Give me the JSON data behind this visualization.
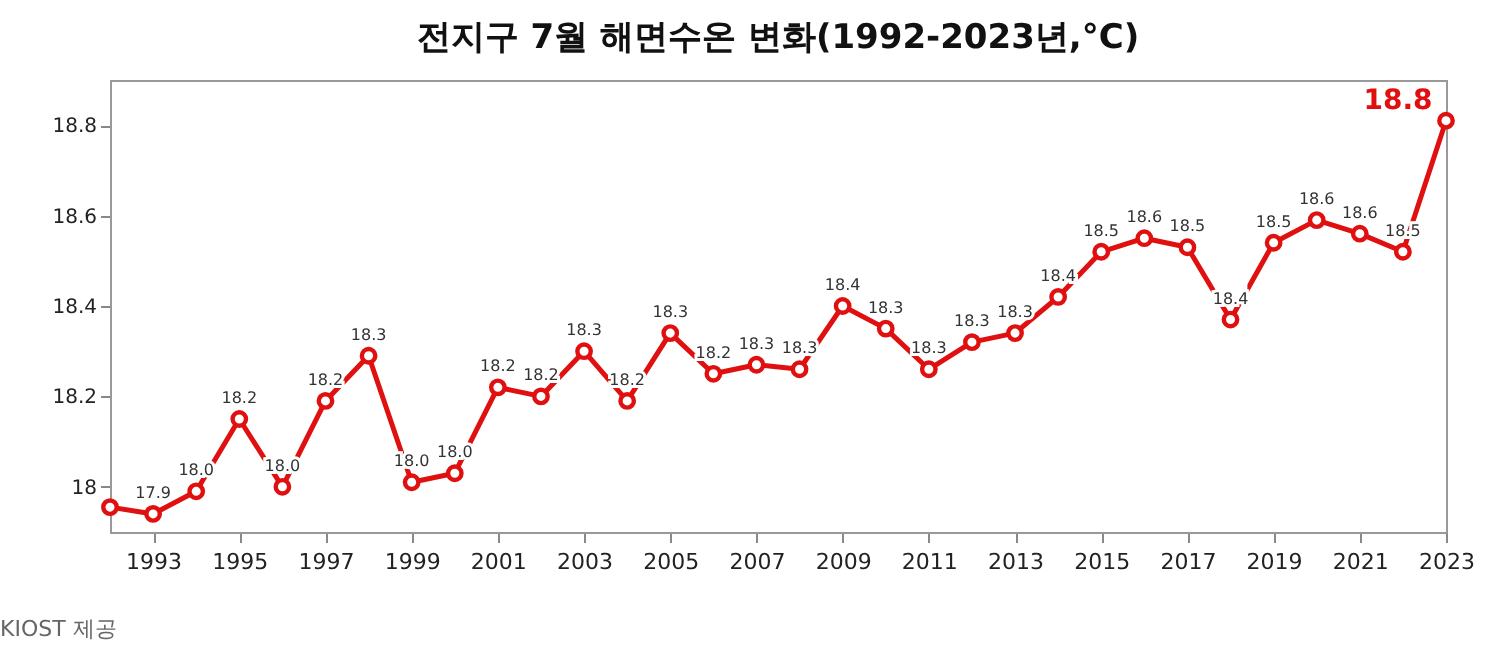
{
  "chart_data": {
    "type": "line",
    "title": "전지구 7월 해면수온 변화(1992-2023년,°C)",
    "x": [
      1992,
      1993,
      1994,
      1995,
      1996,
      1997,
      1998,
      1999,
      2000,
      2001,
      2002,
      2003,
      2004,
      2005,
      2006,
      2007,
      2008,
      2009,
      2010,
      2011,
      2012,
      2013,
      2014,
      2015,
      2016,
      2017,
      2018,
      2019,
      2020,
      2021,
      2022,
      2023
    ],
    "series": [
      {
        "color": "#e01010",
        "values": [
          17.955,
          17.94,
          17.99,
          18.15,
          18.0,
          18.19,
          18.29,
          18.01,
          18.03,
          18.22,
          18.2,
          18.3,
          18.19,
          18.34,
          18.25,
          18.27,
          18.26,
          18.4,
          18.35,
          18.26,
          18.32,
          18.34,
          18.42,
          18.52,
          18.55,
          18.53,
          18.37,
          18.54,
          18.59,
          18.56,
          18.52,
          18.81
        ],
        "value_labels": [
          null,
          "17.9",
          "18.0",
          "18.2",
          "18.0",
          "18.2",
          "18.3",
          "18.0",
          "18.0",
          "18.2",
          "18.2",
          "18.3",
          "18.2",
          "18.3",
          "18.2",
          "18.3",
          "18.3",
          "18.4",
          "18.3",
          "18.3",
          "18.3",
          "18.3",
          "18.4",
          "18.5",
          "18.6",
          "18.5",
          "18.4",
          "18.5",
          "18.6",
          "18.6",
          "18.5",
          "18.8"
        ]
      }
    ],
    "xlim": [
      1992,
      2023
    ],
    "xticks": [
      1993,
      1995,
      1997,
      1999,
      2001,
      2003,
      2005,
      2007,
      2009,
      2011,
      2013,
      2015,
      2017,
      2019,
      2021,
      2023
    ],
    "ylim": [
      17.9,
      18.9
    ],
    "yticks": [
      18,
      18.2,
      18.4,
      18.6,
      18.8
    ],
    "grid": false,
    "marker": "circle",
    "line_style": "solid",
    "annotations": [
      "KIOST 제공"
    ]
  }
}
